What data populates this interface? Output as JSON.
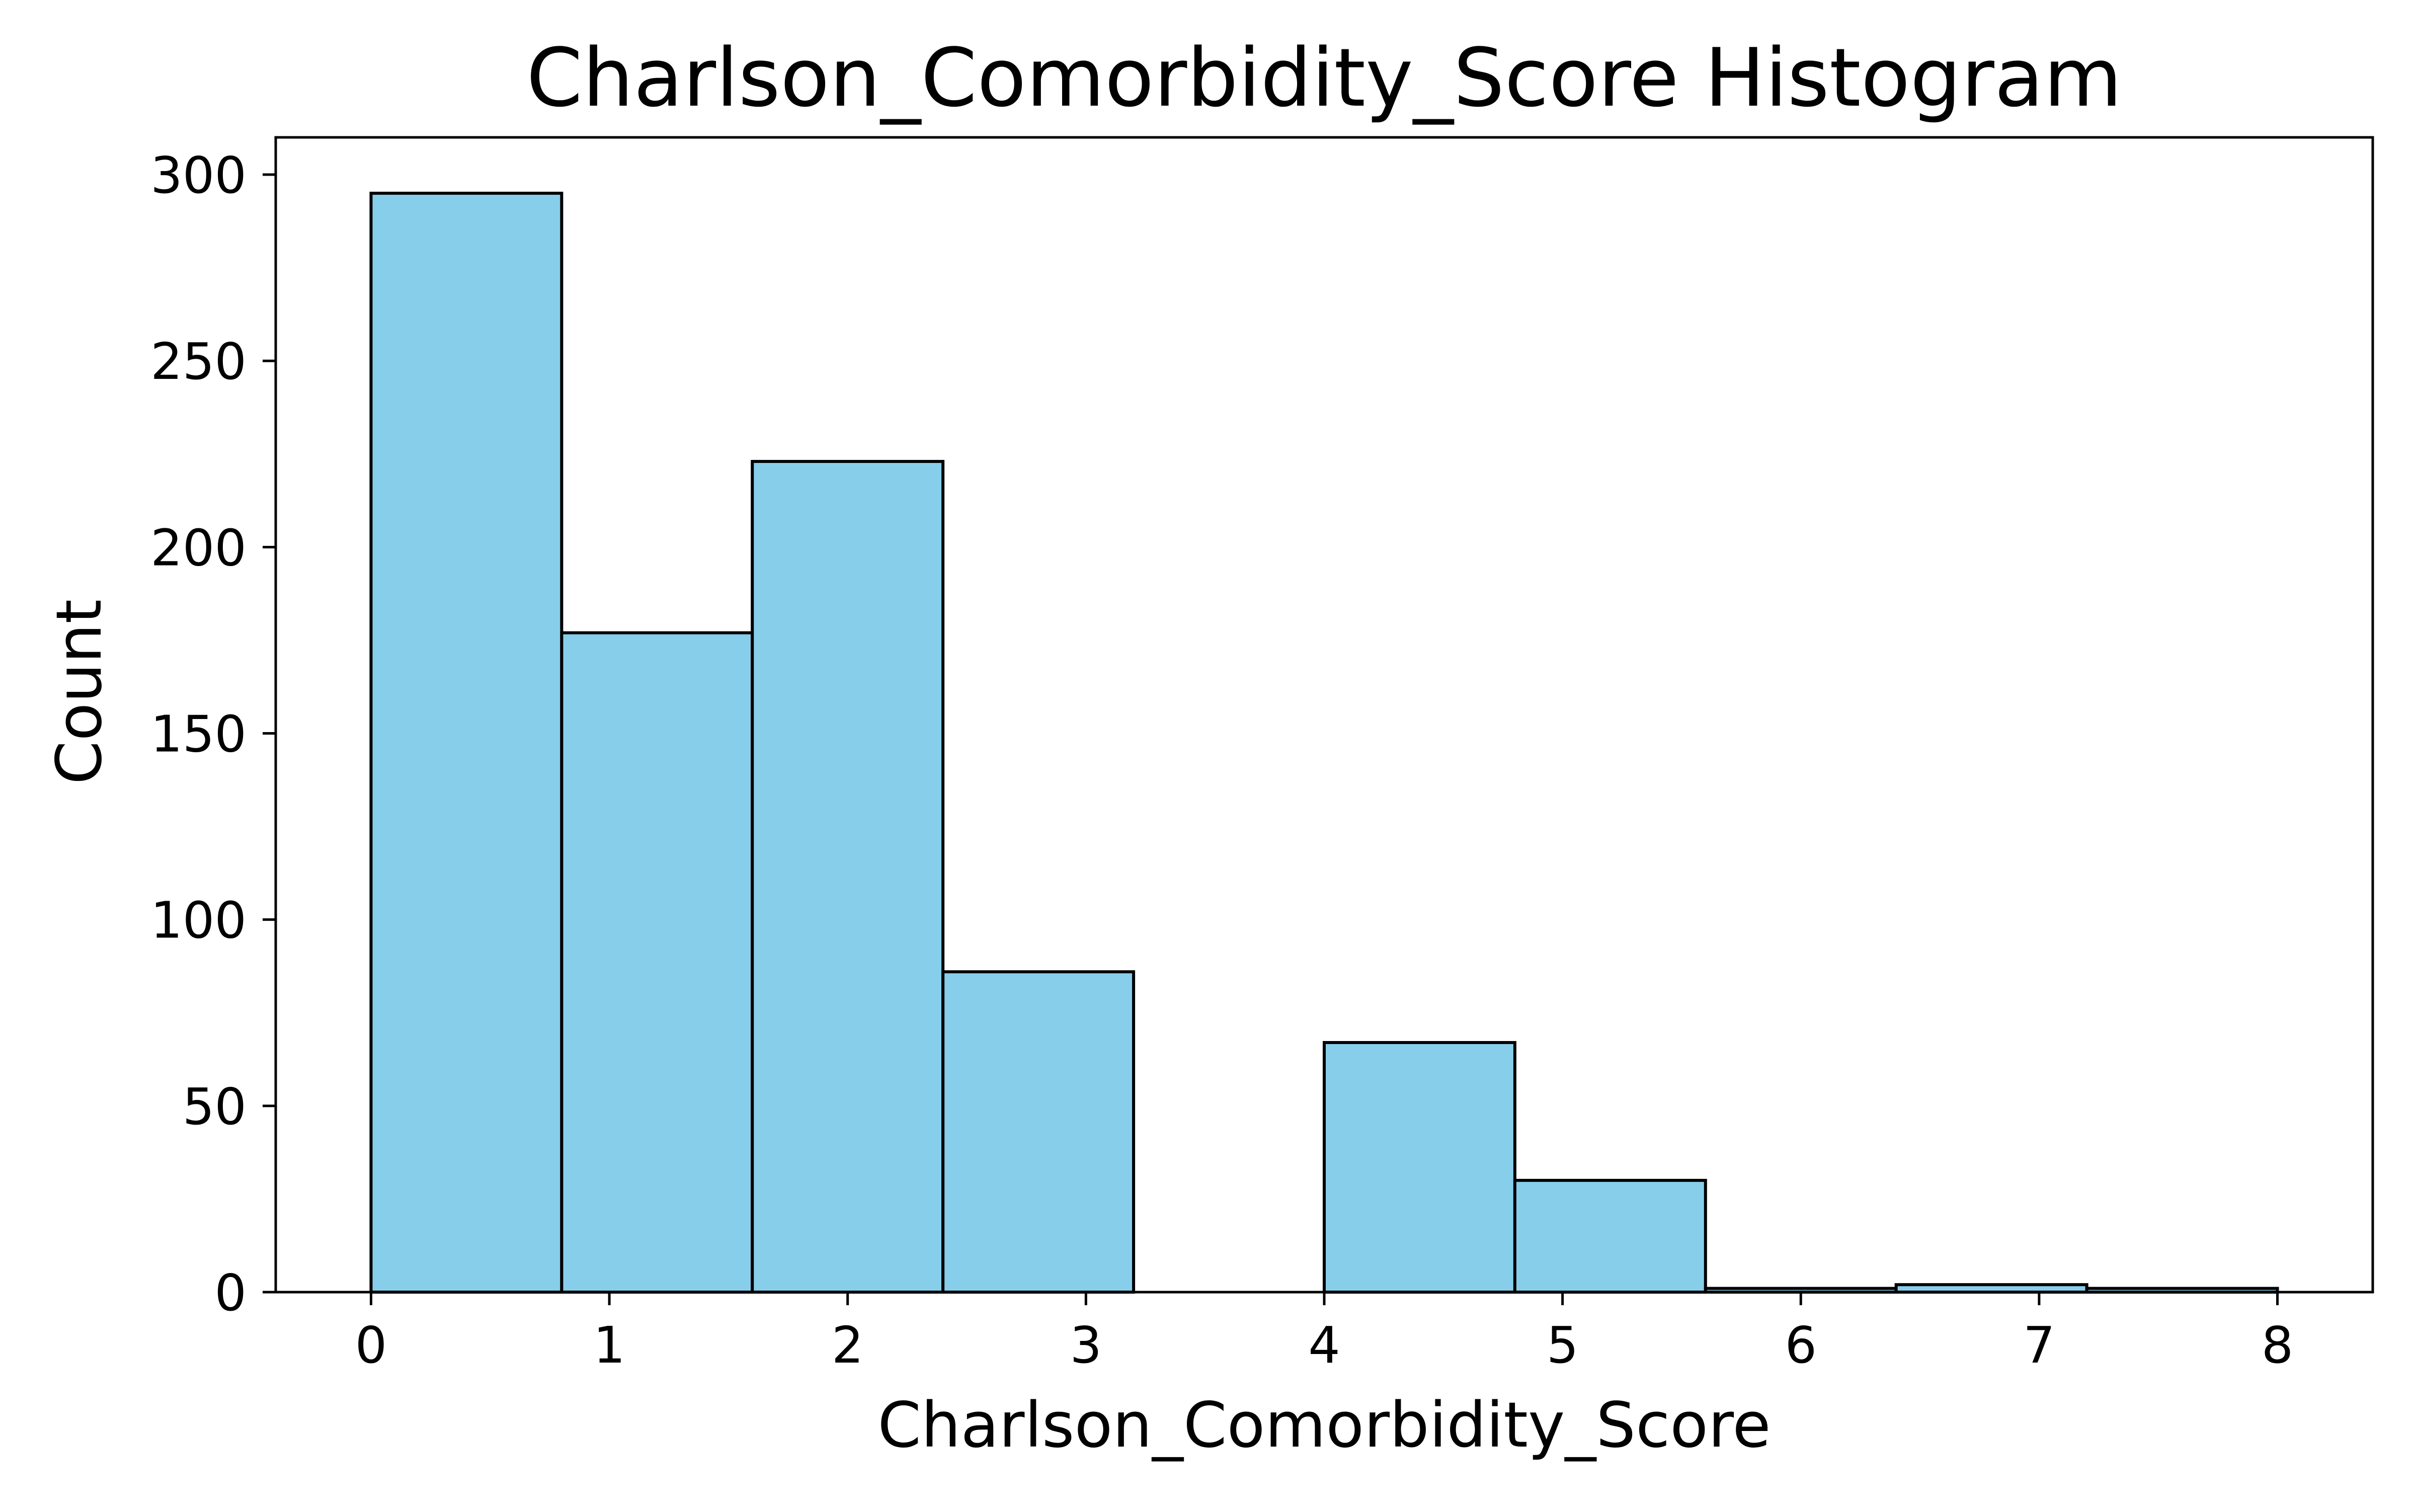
{
  "chart_data": {
    "type": "bar",
    "title": "Charlson_Comorbidity_Score Histogram",
    "xlabel": "Charlson_Comorbidity_Score",
    "ylabel": "Count",
    "xlim": [
      -0.4,
      8.4
    ],
    "ylim": [
      0,
      310
    ],
    "x_ticks": [
      "0",
      "1",
      "2",
      "3",
      "4",
      "5",
      "6",
      "7",
      "8"
    ],
    "y_ticks": [
      "0",
      "50",
      "100",
      "150",
      "200",
      "250",
      "300"
    ],
    "bins": [
      {
        "start": 0.0,
        "end": 0.8,
        "count": 295
      },
      {
        "start": 0.8,
        "end": 1.6,
        "count": 177
      },
      {
        "start": 1.6,
        "end": 2.4,
        "count": 223
      },
      {
        "start": 2.4,
        "end": 3.2,
        "count": 86
      },
      {
        "start": 3.2,
        "end": 4.0,
        "count": 0
      },
      {
        "start": 4.0,
        "end": 4.8,
        "count": 67
      },
      {
        "start": 4.8,
        "end": 5.6,
        "count": 30
      },
      {
        "start": 5.6,
        "end": 6.4,
        "count": 1
      },
      {
        "start": 6.4,
        "end": 7.2,
        "count": 2
      },
      {
        "start": 7.2,
        "end": 8.0,
        "count": 1
      }
    ],
    "bar_color": "#87CEEB",
    "edge_color": "#000000",
    "grid": false
  }
}
